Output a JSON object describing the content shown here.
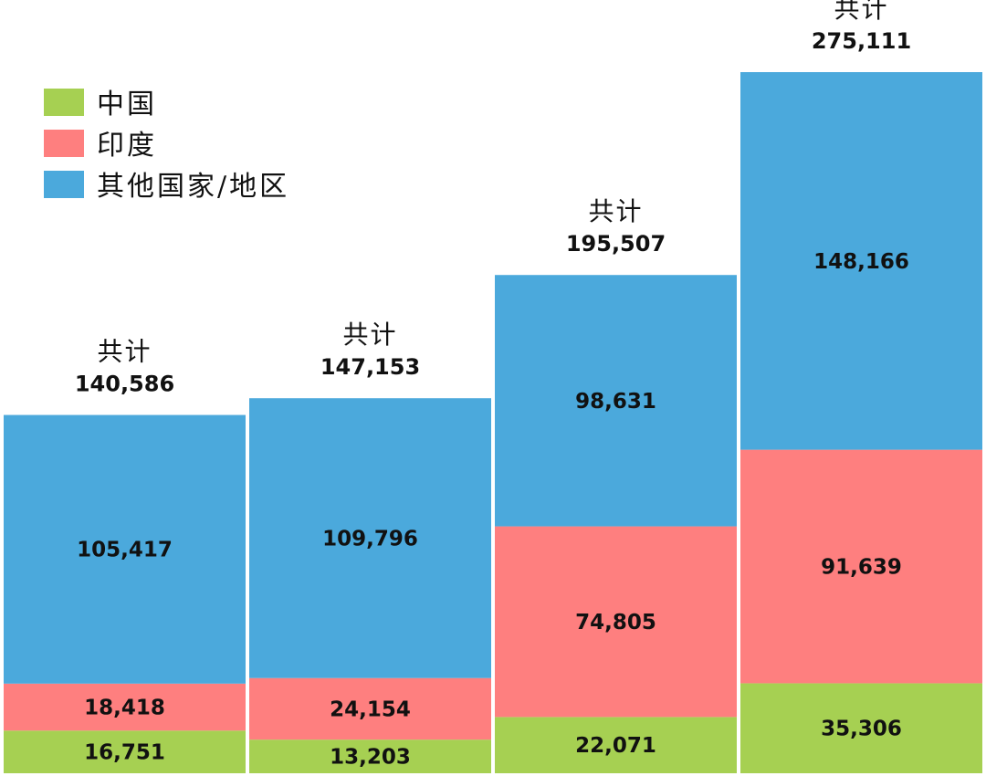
{
  "chart_data": {
    "type": "bar",
    "stacked": true,
    "categories": [
      "",
      "",
      "",
      ""
    ],
    "total_label": "共计",
    "series": [
      {
        "name": "中国",
        "color": "#a6d052",
        "values": [
          16751,
          13203,
          22071,
          35306
        ],
        "labels": [
          "16,751",
          "13,203",
          "22,071",
          "35,306"
        ]
      },
      {
        "name": "印度",
        "color": "#fe7f7f",
        "values": [
          18418,
          24154,
          74805,
          91639
        ],
        "labels": [
          "18,418",
          "24,154",
          "74,805",
          "91,639"
        ]
      },
      {
        "name": "其他国家/地区",
        "color": "#4ba9dc",
        "values": [
          105417,
          109796,
          98631,
          148166
        ],
        "labels": [
          "105,417",
          "109,796",
          "98,631",
          "148,166"
        ]
      }
    ],
    "totals": [
      140586,
      147153,
      195507,
      275111
    ],
    "total_labels": [
      "140,586",
      "147,153",
      "195,507",
      "275,111"
    ],
    "legend_position": "top-left",
    "grid": false
  }
}
